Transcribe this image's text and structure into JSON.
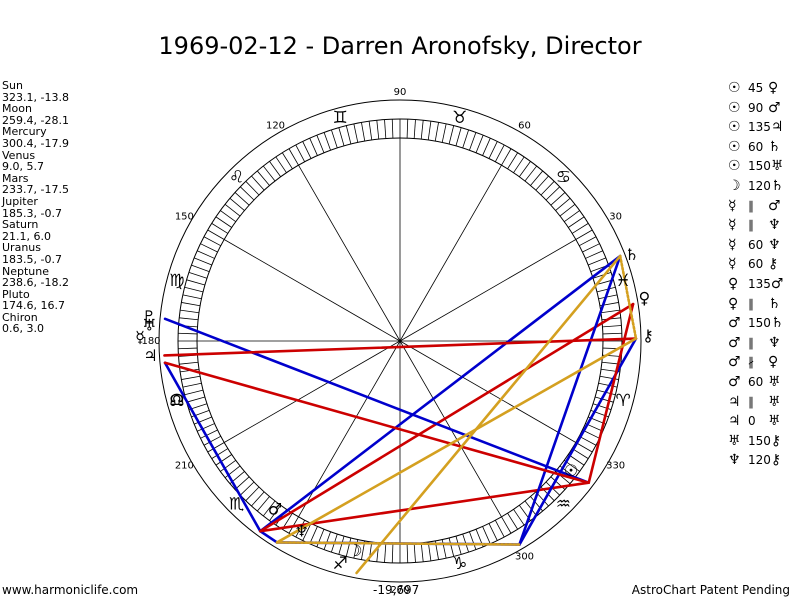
{
  "title": "1969-02-12 - Darren Aronofsky, Director",
  "planets": [
    {
      "name": "Sun",
      "value": "323.1, -13.8",
      "lon": 323.1,
      "glyph": "☉",
      "label_lon": 322.7,
      "label_r": 215
    },
    {
      "name": "Moon",
      "value": "259.4, -28.1",
      "lon": 259.4,
      "glyph": "☽",
      "label_lon": 258,
      "label_r": 215
    },
    {
      "name": "Mercury",
      "value": "300.4, -17.9",
      "lon": 300.4,
      "glyph": "☿",
      "label_lon": 179.3,
      "label_r": 260
    },
    {
      "name": "Venus",
      "value": "9.0, 5.7",
      "lon": 9.0,
      "glyph": "♀",
      "label_lon": 9.8,
      "label_r": 248
    },
    {
      "name": "Mars",
      "value": "233.7, -17.5",
      "lon": 233.7,
      "glyph": "♂",
      "label_lon": 233.5,
      "label_r": 210
    },
    {
      "name": "Jupiter",
      "value": "185.3, -0.7",
      "lon": 185.3,
      "glyph": "♃",
      "label_lon": 183.6,
      "label_r": 250
    },
    {
      "name": "Saturn",
      "value": "21.1, 6.0",
      "lon": 21.1,
      "glyph": "♄",
      "label_lon": 20.2,
      "label_r": 247
    },
    {
      "name": "Uranus",
      "value": "183.5, -0.7",
      "lon": 183.5,
      "glyph": "♅",
      "label_lon": 176.6,
      "label_r": 251
    },
    {
      "name": "Neptune",
      "value": "238.6, -18.2",
      "lon": 238.6,
      "glyph": "♆",
      "label_lon": 242.8,
      "label_r": 215
    },
    {
      "name": "Pluto",
      "value": "174.6, 16.7",
      "lon": 174.6,
      "glyph": "♇",
      "label_lon": 174.7,
      "label_r": 252
    },
    {
      "name": "Chiron",
      "value": "0.6, 3.0",
      "lon": 0.6,
      "glyph": "⚷",
      "label_lon": 1.0,
      "label_r": 248
    }
  ],
  "aspects": [
    {
      "g1": "☉",
      "num": "45",
      "g2": "♀"
    },
    {
      "g1": "☉",
      "num": "90",
      "g2": "♂"
    },
    {
      "g1": "☉",
      "num": "135",
      "g2": "♃"
    },
    {
      "g1": "☉",
      "num": "60",
      "g2": "♄"
    },
    {
      "g1": "☉",
      "num": "150",
      "g2": "♅"
    },
    {
      "g1": "☽",
      "num": "120",
      "g2": "♄"
    },
    {
      "g1": "☿",
      "num": "∥",
      "g2": "♂"
    },
    {
      "g1": "☿",
      "num": "∥",
      "g2": "♆"
    },
    {
      "g1": "☿",
      "num": "60",
      "g2": "♆"
    },
    {
      "g1": "☿",
      "num": "60",
      "g2": "⚷"
    },
    {
      "g1": "♀",
      "num": "135",
      "g2": "♂"
    },
    {
      "g1": "♀",
      "num": "∥",
      "g2": "♄"
    },
    {
      "g1": "♂",
      "num": "150",
      "g2": "♄"
    },
    {
      "g1": "♂",
      "num": "∥",
      "g2": "♆"
    },
    {
      "g1": "♂",
      "num": "∦",
      "g2": "♀"
    },
    {
      "g1": "♂",
      "num": "60",
      "g2": "♅"
    },
    {
      "g1": "♃",
      "num": "∥",
      "g2": "♅"
    },
    {
      "g1": "♃",
      "num": "0",
      "g2": "♅"
    },
    {
      "g1": "♅",
      "num": "150",
      "g2": "⚷"
    },
    {
      "g1": "♆",
      "num": "120",
      "g2": "⚷"
    }
  ],
  "degree_labels": [
    {
      "text": "30",
      "deg": 30
    },
    {
      "text": "60",
      "deg": 60
    },
    {
      "text": "90",
      "deg": 90
    },
    {
      "text": "120",
      "deg": 120
    },
    {
      "text": "150",
      "deg": 150
    },
    {
      "text": "180",
      "deg": 180
    },
    {
      "text": "210",
      "deg": 210
    },
    {
      "text": "270",
      "deg": 270
    },
    {
      "text": "300",
      "deg": 300
    },
    {
      "text": "330",
      "deg": 330
    }
  ],
  "signs": [
    {
      "glyph": "♈",
      "deg": 345
    },
    {
      "glyph": "♉",
      "deg": 75
    },
    {
      "glyph": "♊",
      "deg": 105
    },
    {
      "glyph": "♋",
      "deg": 45
    },
    {
      "glyph": "♌",
      "deg": 135
    },
    {
      "glyph": "♍",
      "deg": 165
    },
    {
      "glyph": "♎",
      "deg": 195
    },
    {
      "glyph": "♏",
      "deg": 225
    },
    {
      "glyph": "♐",
      "deg": 255
    },
    {
      "glyph": "♑",
      "deg": 285
    },
    {
      "glyph": "♒",
      "deg": 315
    },
    {
      "glyph": "♓",
      "deg": 15
    }
  ],
  "node_glyph": "☊",
  "node_deg": 195,
  "lines": [
    {
      "a": "Mars",
      "b": "Neptune",
      "color": "#0000cc",
      "dash": false
    },
    {
      "a": "Mars",
      "b": "Jupiter",
      "color": "#0000cc",
      "dash": false
    },
    {
      "a": "Mars",
      "b": "Sun",
      "color": "#cc0000",
      "dash": false
    },
    {
      "a": "Mars",
      "b": "Saturn",
      "color": "#0000cc",
      "dash": false
    },
    {
      "a": "Mars",
      "b": "Venus",
      "color": "#cc0000",
      "dash": false
    },
    {
      "a": "Mercury",
      "b": "Neptune",
      "color": "#0000cc",
      "dash": false
    },
    {
      "a": "Mercury",
      "b": "Chiron",
      "color": "#0000cc",
      "dash": false
    },
    {
      "a": "Mercury",
      "b": "Saturn",
      "color": "#0000cc",
      "dash": false
    },
    {
      "a": "Sun",
      "b": "Pluto",
      "color": "#0000cc",
      "dash": false
    },
    {
      "a": "Sun",
      "b": "Jupiter",
      "color": "#cc0000",
      "dash": false
    },
    {
      "a": "Sun",
      "b": "Venus",
      "color": "#cc0000",
      "dash": false
    },
    {
      "a": "Uranus",
      "b": "Chiron",
      "color": "#cc0000",
      "dash": false
    },
    {
      "a": "Saturn",
      "b": "Moon",
      "color": "#d4a020",
      "dash": false
    },
    {
      "a": "Neptune",
      "b": "Chiron",
      "color": "#d4a020",
      "dash": false
    },
    {
      "a": "Neptune",
      "b": "Mercury",
      "color": "#d4a020",
      "dash": true
    },
    {
      "a": "Saturn",
      "b": "Chiron",
      "color": "#d4a020",
      "dash": true
    }
  ],
  "bottom_value": "-19,697",
  "footer_left": "www.harmoniclife.com",
  "footer_right": "AstroChart Patent Pending"
}
